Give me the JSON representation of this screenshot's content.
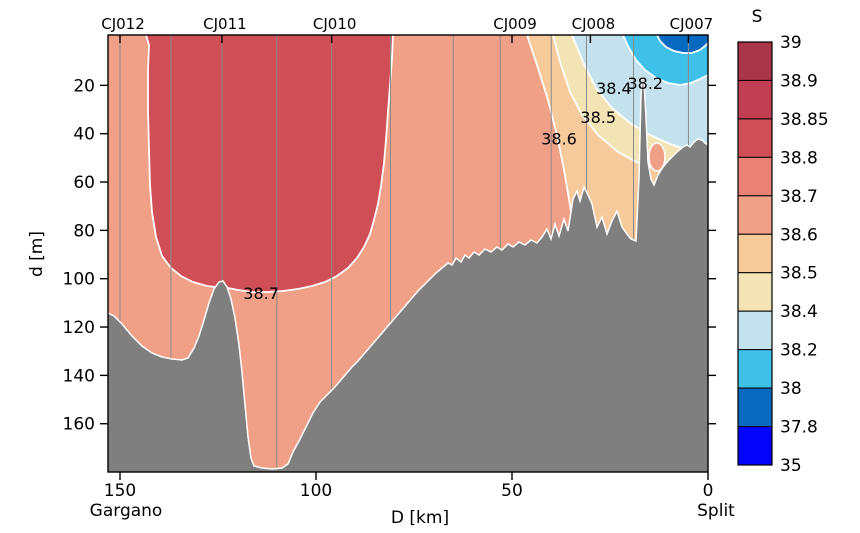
{
  "figure": {
    "background": "#ffffff",
    "seafloor_color": "#7f7f7f",
    "station_line_color": "#8a8a8a",
    "contour_line_color": "#ffffff",
    "axis_color": "#000000"
  },
  "axes": {
    "x": {
      "label": "D [km]",
      "ticks": [
        150,
        100,
        50,
        0
      ],
      "direction": "reversed",
      "left_end_label": "Gargano",
      "right_end_label": "Split"
    },
    "y": {
      "label": "d [m]",
      "ticks": [
        20,
        40,
        60,
        80,
        100,
        120,
        140,
        160
      ]
    }
  },
  "stations": {
    "labeled": [
      {
        "name": "CJ012",
        "distance_km": 150
      },
      {
        "name": "CJ011",
        "distance_km": 124
      },
      {
        "name": "CJ010",
        "distance_km": 96
      },
      {
        "name": "CJ009",
        "distance_km": 50
      },
      {
        "name": "CJ008",
        "distance_km": 30
      },
      {
        "name": "CJ007",
        "distance_km": 5
      }
    ],
    "cast_lines_km": [
      150,
      137,
      124,
      110,
      96,
      81,
      65,
      53,
      40,
      31,
      19,
      5
    ]
  },
  "colorbar": {
    "title": "S",
    "tick_labels": [
      "39",
      "38.9",
      "38.85",
      "38.8",
      "38.7",
      "38.6",
      "38.5",
      "38.4",
      "38.2",
      "38",
      "37.8",
      "35"
    ]
  },
  "chart_data": {
    "type": "heatmap",
    "subtype": "filled-contour-vertical-section",
    "variable": "Salinity S",
    "title": "S",
    "xlabel": "D [km]",
    "ylabel": "d [m]",
    "x_range_km": [
      153,
      0
    ],
    "y_range_m": [
      0,
      180
    ],
    "stations": [
      {
        "name": "CJ012",
        "distance_km": 150
      },
      {
        "name": "CJ011",
        "distance_km": 124
      },
      {
        "name": "CJ010",
        "distance_km": 96
      },
      {
        "name": "CJ009",
        "distance_km": 50
      },
      {
        "name": "CJ008",
        "distance_km": 30
      },
      {
        "name": "CJ007",
        "distance_km": 5
      }
    ],
    "levels": [
      35,
      37.8,
      38,
      38.2,
      38.4,
      38.5,
      38.6,
      38.7,
      38.8,
      38.85,
      38.9,
      39
    ],
    "colors": [
      "#0404fc",
      "#0769bf",
      "#3ec0e9",
      "#c3e2ee",
      "#f3e4b5",
      "#f6ca9b",
      "#f0a086",
      "#e98175",
      "#d04f57",
      "#c23e52",
      "#a93549"
    ],
    "contour_labels": [
      {
        "value": "38.7",
        "distance_km": 114,
        "depth_m": 106
      },
      {
        "value": "38.6",
        "distance_km": 38,
        "depth_m": 42
      },
      {
        "value": "38.5",
        "distance_km": 28,
        "depth_m": 33
      },
      {
        "value": "38.4",
        "distance_km": 24,
        "depth_m": 21
      },
      {
        "value": "38.2",
        "distance_km": 16,
        "depth_m": 19
      }
    ],
    "features": [
      "high-salinity core >38.7 between ~80 and ~150 km above ~105 m depth",
      "fresher surface water <38.2 near Split (0-20 km), minimum <38 at surface",
      "seamount near 124 km rising to ~100 m, trench near 105 km reaching ~180 m",
      "shelf shoals toward Split with narrow rocky spike near 17 km"
    ]
  }
}
